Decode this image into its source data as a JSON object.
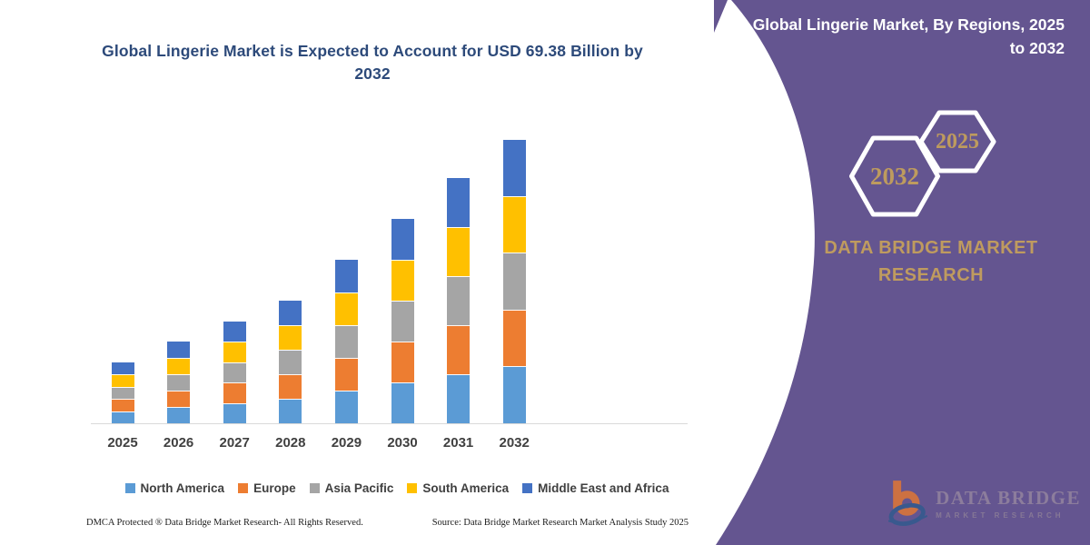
{
  "chart": {
    "title": "Global Lingerie Market is Expected to Account for USD 69.38 Billion by 2032"
  },
  "chart_data": {
    "type": "bar",
    "stacked": true,
    "title": "Global Lingerie Market is Expected to Account for USD 69.38 Billion by 2032",
    "unit": "USD Billion",
    "categories": [
      "2025",
      "2026",
      "2027",
      "2028",
      "2029",
      "2030",
      "2031",
      "2032"
    ],
    "series": [
      {
        "name": "North America",
        "color": "#5B9BD5",
        "values": [
          3.0,
          4.0,
          5.0,
          6.0,
          8.0,
          10.0,
          12.0,
          13.9
        ]
      },
      {
        "name": "Europe",
        "color": "#ED7D31",
        "values": [
          3.0,
          4.0,
          5.0,
          6.0,
          8.0,
          10.0,
          12.0,
          13.9
        ]
      },
      {
        "name": "Asia Pacific",
        "color": "#A5A5A5",
        "values": [
          3.0,
          4.0,
          5.0,
          6.0,
          8.0,
          10.0,
          12.0,
          13.9
        ]
      },
      {
        "name": "South America",
        "color": "#FFC000",
        "values": [
          3.0,
          4.0,
          5.0,
          6.0,
          8.0,
          10.0,
          12.0,
          13.9
        ]
      },
      {
        "name": "Middle East and Africa",
        "color": "#4472C4",
        "values": [
          3.0,
          4.0,
          5.0,
          6.0,
          8.0,
          10.0,
          12.0,
          13.78
        ]
      }
    ],
    "totals_estimated": [
      15,
      20,
      25,
      30,
      40,
      50,
      60,
      69.38
    ],
    "highlight_value": "USD 69.38 Billion by 2032",
    "ylim": [
      0,
      75
    ],
    "grid": false,
    "y_axis_visible": false,
    "legend_position": "bottom",
    "xlabel": "",
    "ylabel": ""
  },
  "footer": {
    "dmca": "DMCA Protected ® Data Bridge Market Research-  All Rights Reserved.",
    "source": "Source: Data Bridge Market Research  Market Analysis Study 2025"
  },
  "panel": {
    "title": "Global Lingerie Market, By Regions, 2025 to 2032",
    "hexagon_back_year": "2032",
    "hexagon_front_year": "2025",
    "brand": "DATA BRIDGE MARKET RESEARCH",
    "logo_line1": "DATA BRIDGE",
    "logo_line2": "MARKET RESEARCH"
  },
  "colors": {
    "panel_purple": "#645590",
    "accent_gold": "#BE9B5E",
    "title_navy": "#2D4A7A",
    "axis_gray": "#D9D9D9",
    "label_gray": "#404040"
  }
}
